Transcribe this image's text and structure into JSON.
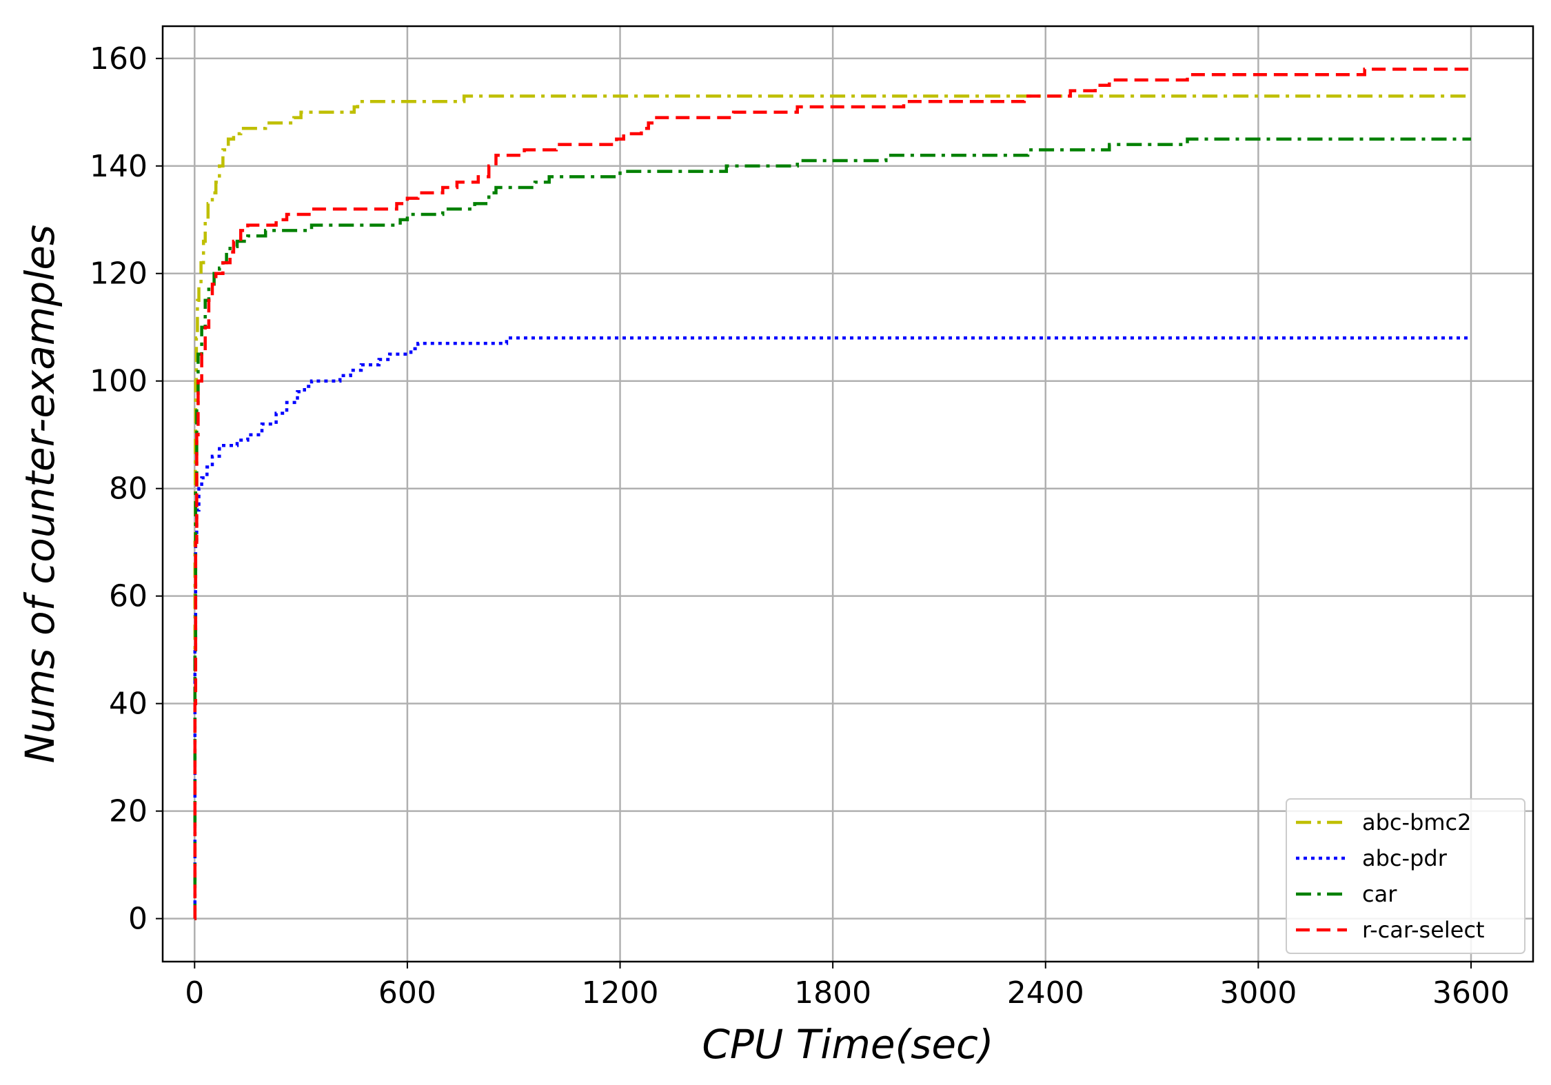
{
  "chart_data": {
    "type": "line",
    "title": "",
    "xlabel": "CPU Time(sec)",
    "ylabel": "Nums of counter-examples",
    "xlim": [
      -90,
      3775
    ],
    "ylim": [
      -8,
      166
    ],
    "xticks": [
      0,
      600,
      1200,
      1800,
      2400,
      3000,
      3600
    ],
    "yticks": [
      0,
      20,
      40,
      60,
      80,
      100,
      120,
      140,
      160
    ],
    "grid": true,
    "legend_position": "lower-right",
    "series": [
      {
        "name": "abc-bmc2",
        "color": "#bfbf00",
        "dash": "dashdot",
        "points": [
          [
            0,
            0
          ],
          [
            1,
            70
          ],
          [
            2,
            90
          ],
          [
            3,
            100
          ],
          [
            5,
            108
          ],
          [
            8,
            115
          ],
          [
            12,
            118
          ],
          [
            18,
            122
          ],
          [
            25,
            126
          ],
          [
            30,
            130
          ],
          [
            38,
            133
          ],
          [
            50,
            135
          ],
          [
            60,
            137
          ],
          [
            70,
            140
          ],
          [
            80,
            143
          ],
          [
            95,
            145
          ],
          [
            110,
            146
          ],
          [
            130,
            147
          ],
          [
            200,
            148
          ],
          [
            280,
            149
          ],
          [
            300,
            150
          ],
          [
            450,
            151
          ],
          [
            460,
            152
          ],
          [
            760,
            153
          ],
          [
            3600,
            153
          ]
        ]
      },
      {
        "name": "abc-pdr",
        "color": "#0000ff",
        "dash": "dotted",
        "points": [
          [
            0,
            0
          ],
          [
            1,
            50
          ],
          [
            3,
            70
          ],
          [
            6,
            76
          ],
          [
            12,
            80
          ],
          [
            20,
            82
          ],
          [
            35,
            84
          ],
          [
            50,
            86
          ],
          [
            70,
            88
          ],
          [
            100,
            88
          ],
          [
            120,
            89
          ],
          [
            150,
            90
          ],
          [
            190,
            92
          ],
          [
            230,
            94
          ],
          [
            260,
            96
          ],
          [
            290,
            98
          ],
          [
            310,
            99
          ],
          [
            330,
            100
          ],
          [
            380,
            100
          ],
          [
            410,
            101
          ],
          [
            440,
            102
          ],
          [
            470,
            103
          ],
          [
            520,
            104
          ],
          [
            550,
            105
          ],
          [
            610,
            106
          ],
          [
            630,
            107
          ],
          [
            880,
            108
          ],
          [
            3600,
            108
          ]
        ]
      },
      {
        "name": "car",
        "color": "#008000",
        "dash": "dashdot",
        "points": [
          [
            0,
            0
          ],
          [
            1,
            50
          ],
          [
            3,
            80
          ],
          [
            6,
            95
          ],
          [
            10,
            105
          ],
          [
            20,
            110
          ],
          [
            30,
            115
          ],
          [
            40,
            118
          ],
          [
            55,
            120
          ],
          [
            70,
            121
          ],
          [
            80,
            122
          ],
          [
            90,
            124
          ],
          [
            100,
            125
          ],
          [
            120,
            126
          ],
          [
            150,
            127
          ],
          [
            200,
            128
          ],
          [
            330,
            129
          ],
          [
            580,
            130
          ],
          [
            600,
            131
          ],
          [
            700,
            132
          ],
          [
            790,
            133
          ],
          [
            830,
            135
          ],
          [
            850,
            136
          ],
          [
            960,
            137
          ],
          [
            1000,
            138
          ],
          [
            1200,
            139
          ],
          [
            1500,
            140
          ],
          [
            1700,
            141
          ],
          [
            1950,
            142
          ],
          [
            2350,
            143
          ],
          [
            2580,
            144
          ],
          [
            2800,
            145
          ],
          [
            3600,
            145
          ]
        ]
      },
      {
        "name": "r-car-select",
        "color": "#ff0000",
        "dash": "dashed",
        "points": [
          [
            0,
            0
          ],
          [
            1,
            40
          ],
          [
            3,
            70
          ],
          [
            6,
            90
          ],
          [
            10,
            100
          ],
          [
            20,
            105
          ],
          [
            30,
            110
          ],
          [
            40,
            115
          ],
          [
            50,
            118
          ],
          [
            60,
            120
          ],
          [
            80,
            122
          ],
          [
            100,
            124
          ],
          [
            110,
            126
          ],
          [
            130,
            128
          ],
          [
            150,
            129
          ],
          [
            230,
            130
          ],
          [
            260,
            131
          ],
          [
            330,
            132
          ],
          [
            570,
            133
          ],
          [
            600,
            134
          ],
          [
            630,
            135
          ],
          [
            700,
            136
          ],
          [
            740,
            137
          ],
          [
            800,
            138
          ],
          [
            830,
            140
          ],
          [
            850,
            142
          ],
          [
            930,
            143
          ],
          [
            1020,
            144
          ],
          [
            1190,
            145
          ],
          [
            1210,
            146
          ],
          [
            1260,
            147
          ],
          [
            1280,
            148
          ],
          [
            1290,
            149
          ],
          [
            1520,
            150
          ],
          [
            1700,
            151
          ],
          [
            2000,
            152
          ],
          [
            2340,
            153
          ],
          [
            2470,
            154
          ],
          [
            2540,
            155
          ],
          [
            2580,
            156
          ],
          [
            2800,
            157
          ],
          [
            3300,
            158
          ],
          [
            3600,
            158
          ]
        ]
      }
    ]
  }
}
